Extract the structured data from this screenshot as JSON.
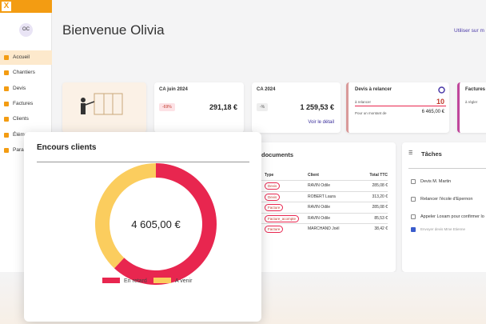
{
  "sidebar": {
    "avatar": "OC",
    "menu": [
      "Accueil",
      "Chantiers",
      "Devis",
      "Factures",
      "Clients",
      "Éléments",
      "Paramètres"
    ]
  },
  "header": {
    "title": "Bienvenue Olivia",
    "link": "Utiliser sur m"
  },
  "kpis": [
    {
      "title": "CA juin 2024",
      "badge": "-69%",
      "value": "291,18 €"
    },
    {
      "title": "CA 2024",
      "badge": "-%",
      "value": "1 259,53 €",
      "link": "Voir le détail"
    },
    {
      "title": "Devis à relancer",
      "label": "à relancer",
      "count": "10",
      "amount_label": "Pour un montant de",
      "amount": "6 465,00 €"
    },
    {
      "title": "Factures",
      "label": "à régler"
    }
  ],
  "documents": {
    "title": "documents",
    "columns": [
      "Type",
      "Client",
      "Total TTC"
    ],
    "rows": [
      [
        "Devis",
        "RAVIN Odile",
        "285,08 €"
      ],
      [
        "Devis",
        "ROBERT Laura",
        "313,20 €"
      ],
      [
        "Facture",
        "RAVIN Odile",
        "285,08 €"
      ],
      [
        "Facture_acompte",
        "RAVIN Odile",
        "85,53 €"
      ],
      [
        "Facture",
        "MARCHAND Joël",
        "38,42 €"
      ]
    ]
  },
  "taches": {
    "title": "Tâches",
    "items": [
      "Devis M. Martin",
      "Relancer l'école d'Epernon",
      "Appeler Loxam pour confirmer lo",
      "Envoyer devis Mme Etienne"
    ]
  },
  "encours": {
    "title": "Encours clients",
    "chart": {
      "type": "pie",
      "total_label": "4 605,00 €",
      "categories": [
        "En retard",
        "A venir"
      ],
      "values": [
        62,
        38
      ],
      "colors": [
        "#e8264f",
        "#fbcd5e"
      ]
    }
  }
}
